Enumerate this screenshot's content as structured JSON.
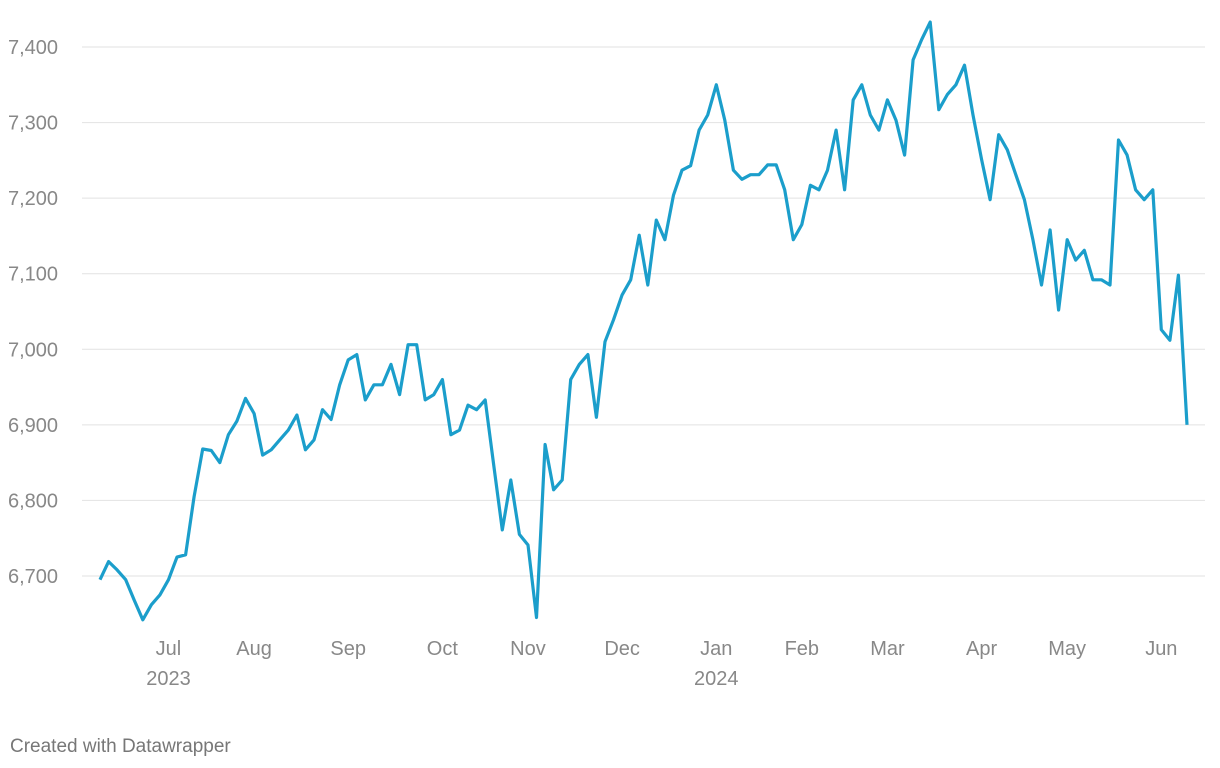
{
  "chart_data": {
    "type": "line",
    "footer": "Created with Datawrapper",
    "color": "#1b9ecb",
    "grid": true,
    "ylim": [
      6640,
      7440
    ],
    "yticks": [
      {
        "value": 6700,
        "label": "6,700"
      },
      {
        "value": 6800,
        "label": "6,800"
      },
      {
        "value": 6900,
        "label": "6,900"
      },
      {
        "value": 7000,
        "label": "7,000"
      },
      {
        "value": 7100,
        "label": "7,100"
      },
      {
        "value": 7200,
        "label": "7,200"
      },
      {
        "value": 7300,
        "label": "7,300"
      },
      {
        "value": 7400,
        "label": "7,400"
      }
    ],
    "categories": [
      null,
      null,
      null,
      null,
      null,
      null,
      null,
      null,
      "Jul",
      null,
      null,
      null,
      null,
      null,
      null,
      null,
      null,
      null,
      "Aug",
      null,
      null,
      null,
      null,
      null,
      null,
      null,
      null,
      null,
      null,
      "Sep",
      null,
      null,
      null,
      null,
      null,
      null,
      null,
      null,
      null,
      null,
      "Oct",
      null,
      null,
      null,
      null,
      null,
      null,
      null,
      null,
      null,
      "Nov",
      null,
      null,
      null,
      null,
      null,
      null,
      null,
      null,
      null,
      null,
      "Dec",
      null,
      null,
      null,
      null,
      null,
      null,
      null,
      null,
      null,
      null,
      "Jan",
      null,
      null,
      null,
      null,
      null,
      null,
      null,
      null,
      null,
      "Feb",
      null,
      null,
      null,
      null,
      null,
      null,
      null,
      null,
      null,
      "Mar",
      null,
      null,
      null,
      null,
      null,
      null,
      null,
      null,
      null,
      null,
      "Apr",
      null,
      null,
      null,
      null,
      null,
      null,
      null,
      null,
      null,
      "May",
      null,
      null,
      null,
      null,
      null,
      null,
      null,
      null,
      null,
      null,
      "Jun",
      null,
      null,
      null
    ],
    "category_years": [
      null,
      null,
      null,
      null,
      null,
      null,
      null,
      null,
      "2023",
      null,
      null,
      null,
      null,
      null,
      null,
      null,
      null,
      null,
      null,
      null,
      null,
      null,
      null,
      null,
      null,
      null,
      null,
      null,
      null,
      null,
      null,
      null,
      null,
      null,
      null,
      null,
      null,
      null,
      null,
      null,
      null,
      null,
      null,
      null,
      null,
      null,
      null,
      null,
      null,
      null,
      null,
      null,
      null,
      null,
      null,
      null,
      null,
      null,
      null,
      null,
      null,
      null,
      null,
      null,
      null,
      null,
      null,
      null,
      null,
      null,
      null,
      null,
      "2024",
      null,
      null,
      null,
      null,
      null,
      null,
      null,
      null,
      null,
      null,
      null,
      null,
      null,
      null,
      null,
      null,
      null,
      null,
      null,
      null,
      null,
      null,
      null,
      null,
      null,
      null,
      null,
      null,
      null,
      null,
      null,
      null,
      null,
      null,
      null,
      null,
      null,
      null,
      null,
      null,
      null,
      null,
      null,
      null,
      null,
      null,
      null,
      null,
      null,
      null,
      null,
      null,
      null,
      null,
      null
    ],
    "values": [
      6695,
      6719,
      6708,
      6695,
      6668,
      6642,
      6662,
      6675,
      6695,
      6725,
      6728,
      6805,
      6868,
      6866,
      6850,
      6887,
      6905,
      6935,
      6915,
      6860,
      6867,
      6880,
      6893,
      6913,
      6867,
      6880,
      6920,
      6907,
      6953,
      6986,
      6993,
      6933,
      6953,
      6953,
      6980,
      6940,
      7006,
      7006,
      6933,
      6940,
      6960,
      6887,
      6893,
      6926,
      6920,
      6933,
      6847,
      6761,
      6827,
      6755,
      6741,
      6645,
      6874,
      6814,
      6827,
      6960,
      6980,
      6993,
      6910,
      7010,
      7039,
      7072,
      7092,
      7151,
      7085,
      7171,
      7145,
      7204,
      7237,
      7243,
      7290,
      7310,
      7350,
      7303,
      7237,
      7225,
      7231,
      7231,
      7244,
      7244,
      7211,
      7145,
      7165,
      7217,
      7211,
      7237,
      7290,
      7211,
      7330,
      7350,
      7310,
      7290,
      7330,
      7303,
      7257,
      7383,
      7410,
      7433,
      7317,
      7337,
      7350,
      7376,
      7310,
      7251,
      7198,
      7284,
      7264,
      7231,
      7198,
      7145,
      7085,
      7158,
      7052,
      7145,
      7118,
      7131,
      7092,
      7092,
      7085,
      7277,
      7257,
      7211,
      7198,
      7211,
      7026,
      7012,
      7098,
      6900
    ]
  }
}
